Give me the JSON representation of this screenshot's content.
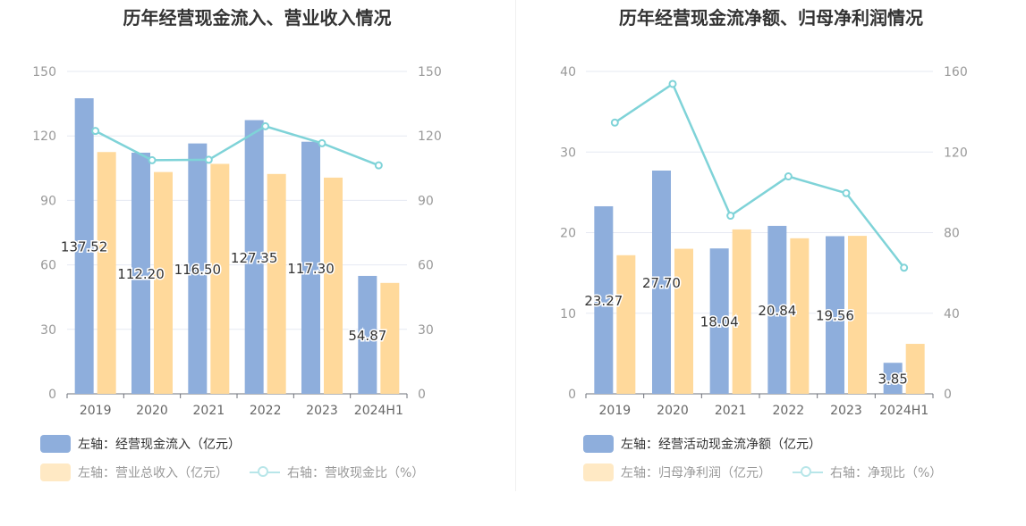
{
  "chart_data": [
    {
      "type": "bar",
      "title": "历年经营现金流入、营业收入情况",
      "categories": [
        "2019",
        "2020",
        "2021",
        "2022",
        "2023",
        "2024H1"
      ],
      "left_axis": {
        "ylim": [
          0,
          150
        ],
        "ticks": [
          "0",
          "30",
          "60",
          "90",
          "120",
          "150"
        ]
      },
      "right_axis": {
        "ylim": [
          0,
          150
        ],
        "ticks": [
          "0",
          "30",
          "60",
          "90",
          "120",
          "150"
        ]
      },
      "series": [
        {
          "name": "左轴：经营现金流入（亿元）",
          "axis": "left",
          "type": "bar",
          "color": "#8eaedc",
          "values": [
            137.52,
            112.2,
            116.5,
            127.35,
            117.3,
            54.87
          ],
          "labels": [
            "137.52",
            "112.20",
            "116.50",
            "127.35",
            "117.30",
            "54.87"
          ]
        },
        {
          "name": "左轴：营业总收入（亿元）",
          "axis": "left",
          "type": "bar",
          "color": "#ffd99b",
          "values": [
            112.5,
            103.2,
            107.0,
            102.3,
            100.6,
            51.6
          ]
        },
        {
          "name": "右轴：营收现金比（%）",
          "axis": "right",
          "type": "line",
          "color": "#7fd3d8",
          "values": [
            122.3,
            108.7,
            108.9,
            124.5,
            116.6,
            106.3
          ]
        }
      ]
    },
    {
      "type": "bar",
      "title": "历年经营现金流净额、归母净利润情况",
      "categories": [
        "2019",
        "2020",
        "2021",
        "2022",
        "2023",
        "2024H1"
      ],
      "left_axis": {
        "ylim": [
          0,
          40
        ],
        "ticks": [
          "0",
          "10",
          "20",
          "30",
          "40"
        ]
      },
      "right_axis": {
        "ylim": [
          0,
          160
        ],
        "ticks": [
          "0",
          "40",
          "80",
          "120",
          "160"
        ]
      },
      "series": [
        {
          "name": "左轴：经营活动现金流净额（亿元）",
          "axis": "left",
          "type": "bar",
          "color": "#8eaedc",
          "values": [
            23.27,
            27.7,
            18.04,
            20.84,
            19.56,
            3.85
          ],
          "labels": [
            "23.27",
            "27.70",
            "18.04",
            "20.84",
            "19.56",
            "3.85"
          ]
        },
        {
          "name": "左轴：归母净利润（亿元）",
          "axis": "left",
          "type": "bar",
          "color": "#ffd99b",
          "values": [
            17.2,
            18.0,
            20.4,
            19.3,
            19.6,
            6.2
          ]
        },
        {
          "name": "右轴：净现比（%）",
          "axis": "right",
          "type": "line",
          "color": "#7fd3d8",
          "values": [
            134.6,
            153.8,
            88.4,
            107.9,
            99.6,
            62.6
          ]
        }
      ]
    }
  ]
}
